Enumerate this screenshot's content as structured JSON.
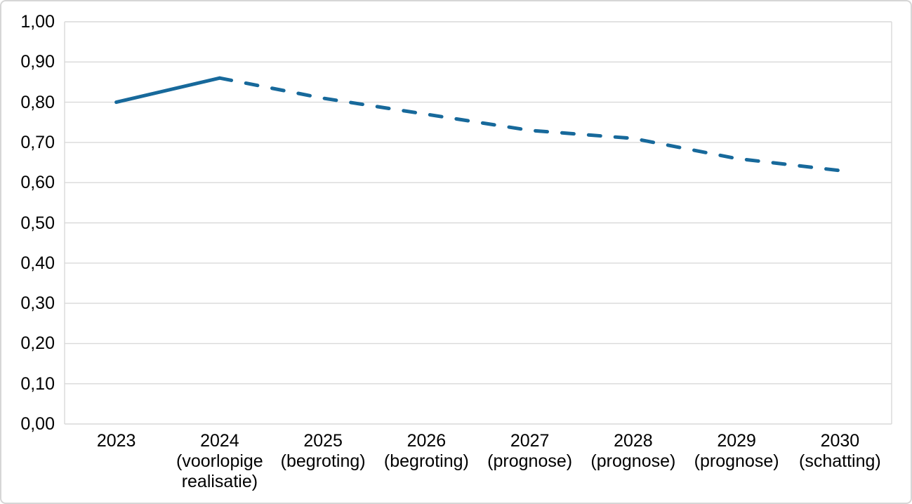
{
  "figure": {
    "background": "#ffffff",
    "border_color": "#d6d6d6"
  },
  "chart_data": {
    "type": "line",
    "title": "",
    "xlabel": "",
    "ylabel": "",
    "categories": [
      {
        "year": "2023",
        "note": ""
      },
      {
        "year": "2024",
        "note": "(voorlopige realisatie)"
      },
      {
        "year": "2025",
        "note": "(begroting)"
      },
      {
        "year": "2026",
        "note": "(begroting)"
      },
      {
        "year": "2027",
        "note": "(prognose)"
      },
      {
        "year": "2028",
        "note": "(prognose)"
      },
      {
        "year": "2029",
        "note": "(prognose)"
      },
      {
        "year": "2030",
        "note": "(schatting)"
      }
    ],
    "series": [
      {
        "values": [
          0.8,
          0.86,
          0.81,
          0.77,
          0.73,
          0.71,
          0.66,
          0.63
        ],
        "color": "#17699B",
        "stroke_width": 5,
        "solid_until_index": 1,
        "style_note": "solid from 2023 to 2024, dashed from 2024 to 2030"
      }
    ],
    "y_axis": {
      "min": 0,
      "max": 1,
      "step": 0.1,
      "tick_labels": [
        "0,00",
        "0,10",
        "0,20",
        "0,30",
        "0,40",
        "0,50",
        "0,60",
        "0,70",
        "0,80",
        "0,90",
        "1,00"
      ]
    },
    "grid": {
      "horizontal": true,
      "color": "#d9d9d9"
    },
    "legend": "none"
  }
}
